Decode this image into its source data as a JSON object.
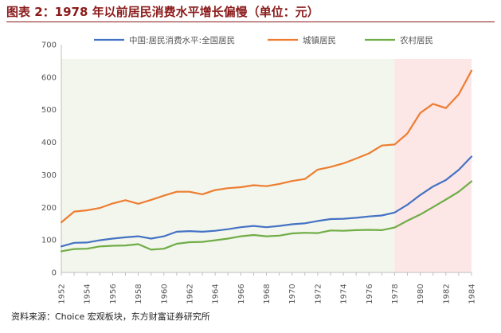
{
  "header": {
    "title": "图表 2：1978 年以前居民消费水平增长偏慢（单位：元）"
  },
  "footer": {
    "source": "资料来源：Choice 宏观板块，东方财富证券研究所"
  },
  "colors": {
    "national": "#4472c4",
    "urban": "#ed7d31",
    "rural": "#70ad47",
    "shade_pre": "#f3f6ec",
    "shade_post": "#fce6e6",
    "axis": "#bfbfbf"
  },
  "chart_data": {
    "type": "line",
    "title": "",
    "xlabel": "",
    "ylabel": "",
    "ylim": [
      0,
      700
    ],
    "yticks": [
      0,
      100,
      200,
      300,
      400,
      500,
      600,
      700
    ],
    "xticks": [
      1952,
      1954,
      1956,
      1958,
      1960,
      1962,
      1964,
      1966,
      1968,
      1970,
      1972,
      1974,
      1976,
      1978,
      1980,
      1982,
      1984
    ],
    "shaded_regions": [
      {
        "from": 1952,
        "to": 1978,
        "color_key": "shade_pre"
      },
      {
        "from": 1978,
        "to": 1984,
        "color_key": "shade_post"
      }
    ],
    "legend_position": "top",
    "x": [
      1952,
      1953,
      1954,
      1955,
      1956,
      1957,
      1958,
      1959,
      1960,
      1961,
      1962,
      1963,
      1964,
      1965,
      1966,
      1967,
      1968,
      1969,
      1970,
      1971,
      1972,
      1973,
      1974,
      1975,
      1976,
      1977,
      1978,
      1979,
      1980,
      1981,
      1982,
      1983,
      1984
    ],
    "series": [
      {
        "name": "中国:居民消费水平:全国居民",
        "color_key": "national",
        "values": [
          80,
          91,
          92,
          99,
          104,
          108,
          111,
          104,
          111,
          125,
          127,
          125,
          128,
          133,
          139,
          143,
          139,
          143,
          148,
          151,
          158,
          164,
          165,
          168,
          172,
          175,
          184,
          208,
          238,
          264,
          284,
          315,
          356
        ]
      },
      {
        "name": "城镇居民",
        "color_key": "urban",
        "values": [
          154,
          187,
          191,
          198,
          212,
          222,
          211,
          223,
          236,
          248,
          248,
          240,
          253,
          259,
          262,
          268,
          265,
          272,
          281,
          287,
          316,
          324,
          335,
          350,
          366,
          390,
          393,
          427,
          490,
          518,
          505,
          547,
          620
        ]
      },
      {
        "name": "农村居民",
        "color_key": "rural",
        "values": [
          65,
          72,
          73,
          80,
          82,
          83,
          87,
          70,
          73,
          88,
          93,
          94,
          99,
          104,
          111,
          115,
          111,
          113,
          120,
          122,
          121,
          129,
          128,
          130,
          131,
          130,
          138,
          159,
          178,
          201,
          224,
          248,
          280
        ]
      }
    ]
  }
}
